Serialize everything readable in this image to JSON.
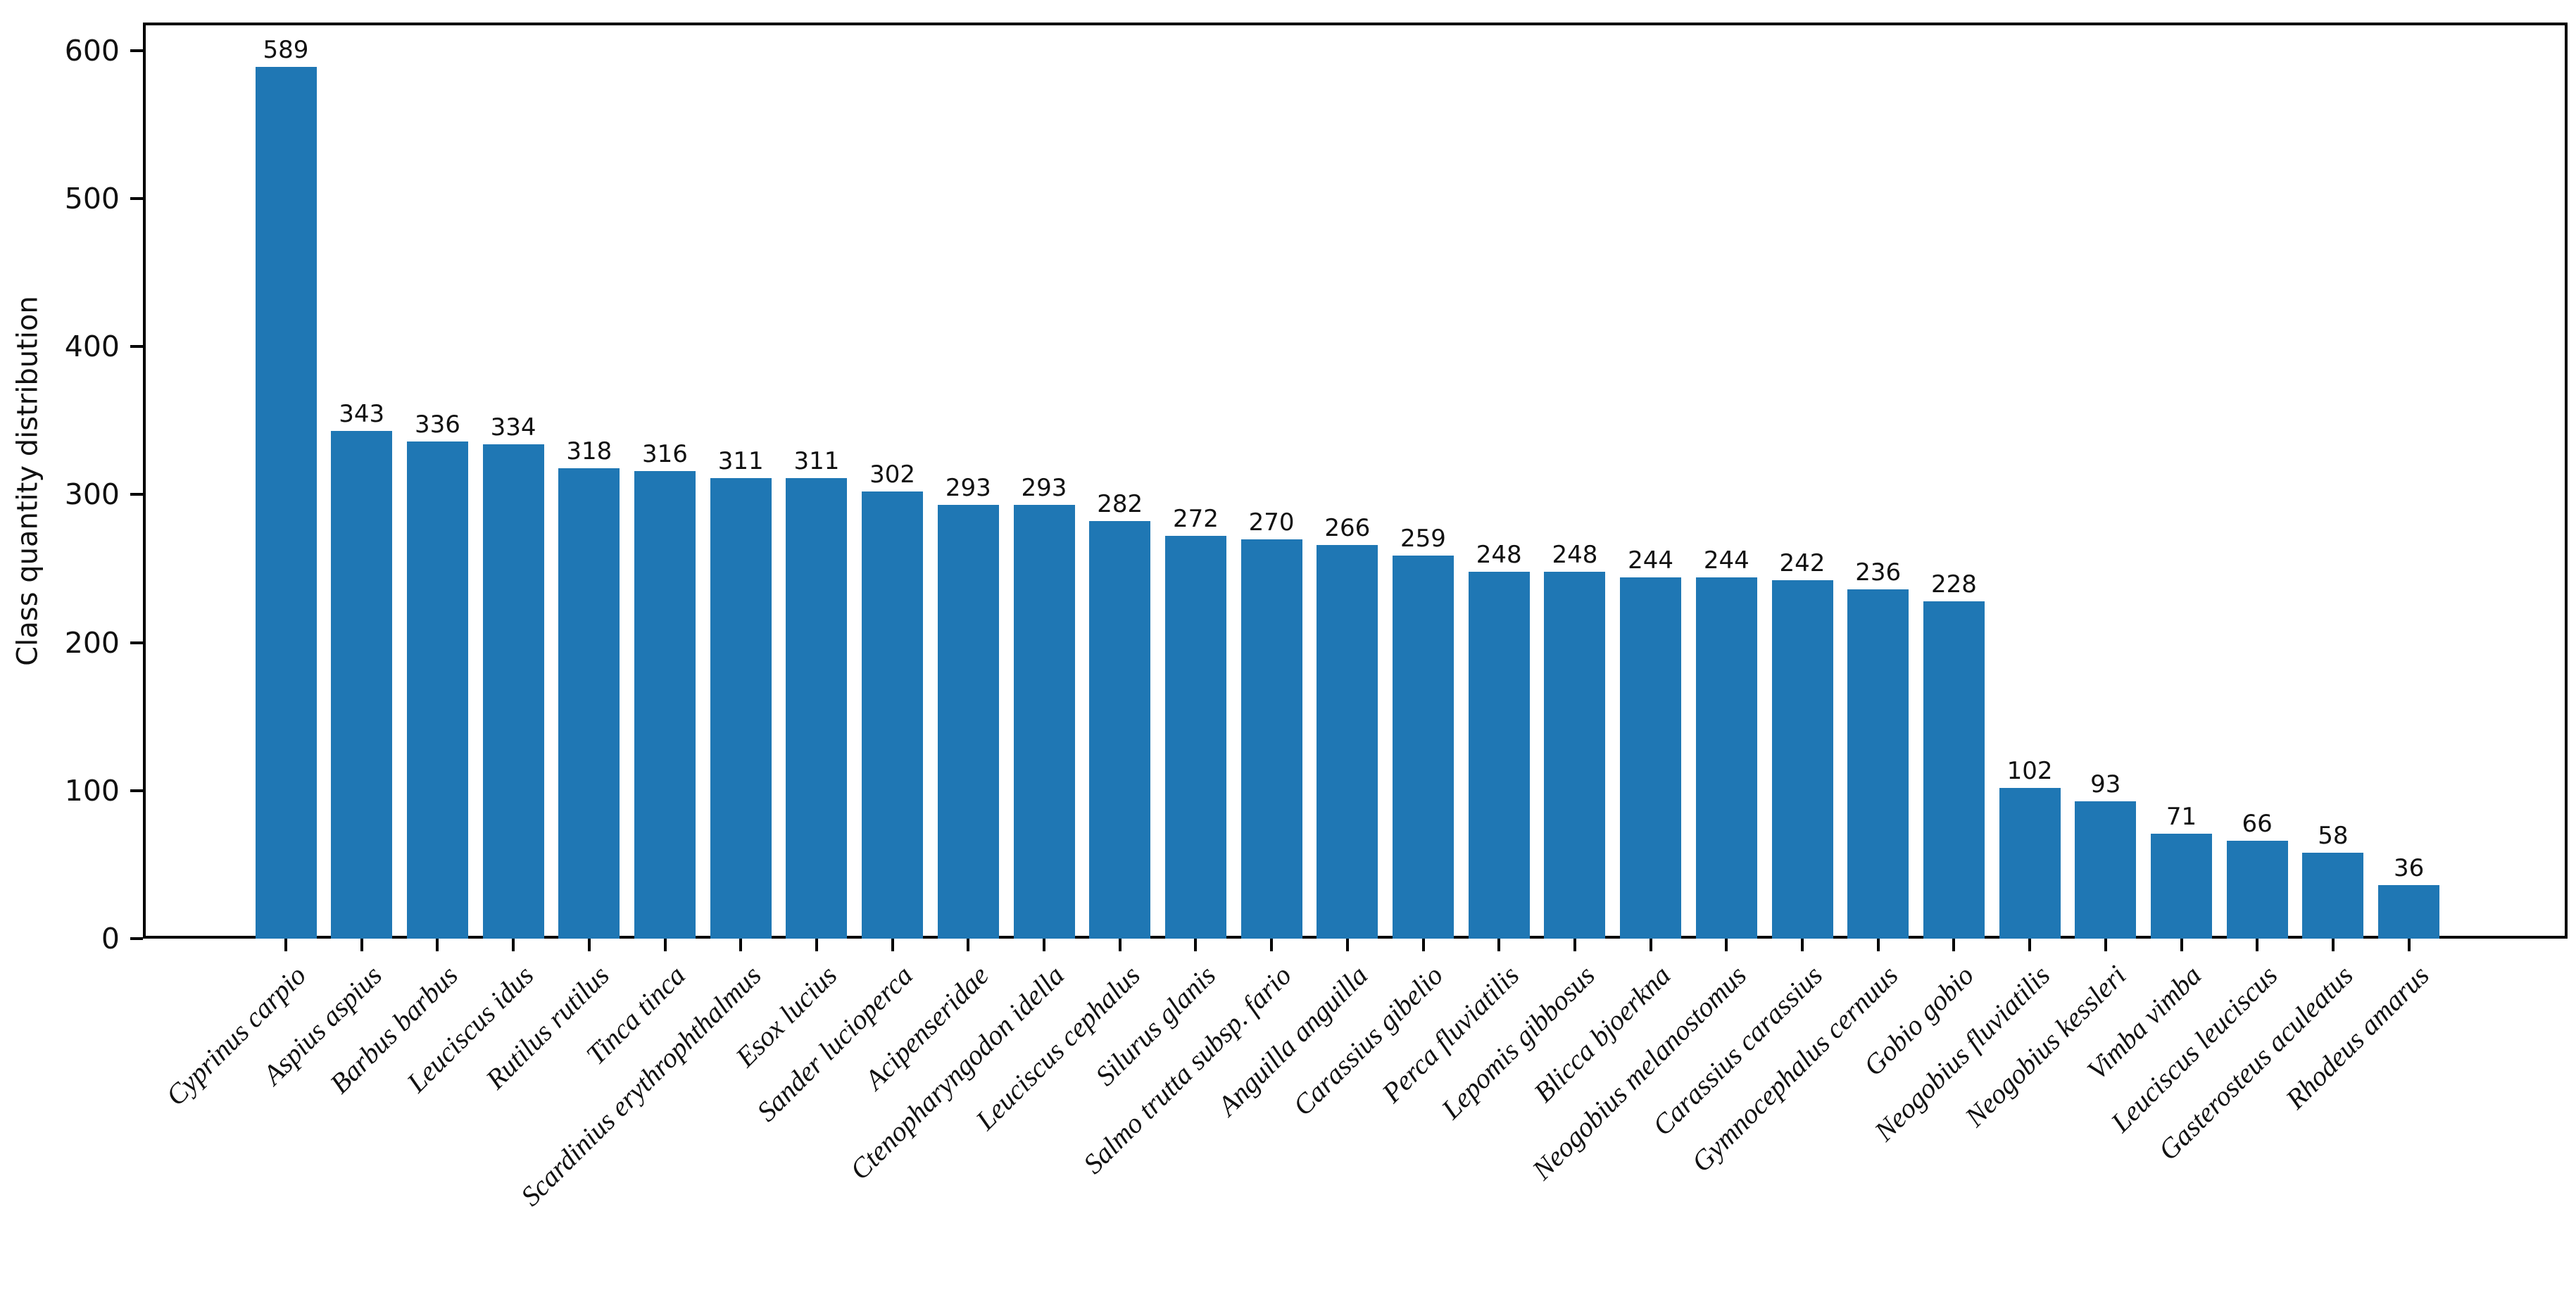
{
  "chart_data": {
    "type": "bar",
    "title": "",
    "xlabel": "",
    "ylabel": "Class quantity distribution",
    "categories": [
      "Cyprinus carpio",
      "Aspius aspius",
      "Barbus barbus",
      "Leuciscus idus",
      "Rutilus rutilus",
      "Tinca tinca",
      "Scardinius erythrophthalmus",
      "Esox lucius",
      "Sander lucioperca",
      "Acipenseridae",
      "Ctenopharyngodon idella",
      "Leuciscus cephalus",
      "Silurus glanis",
      "Salmo trutta subsp. fario",
      "Anguilla anguilla",
      "Carassius gibelio",
      "Perca fluviatilis",
      "Lepomis gibbosus",
      "Blicca bjoerkna",
      "Neogobius melanostomus",
      "Carassius carassius",
      "Gymnocephalus cernuus",
      "Gobio gobio",
      "Neogobius fluviatilis",
      "Neogobius kessleri",
      "Vimba vimba",
      "Leuciscus leuciscus",
      "Gasterosteus aculeatus",
      "Rhodeus amarus"
    ],
    "values": [
      589,
      343,
      336,
      334,
      318,
      316,
      311,
      311,
      302,
      293,
      293,
      282,
      272,
      270,
      266,
      259,
      248,
      248,
      244,
      244,
      242,
      236,
      228,
      102,
      93,
      71,
      66,
      58,
      36
    ],
    "yticks": [
      0,
      100,
      200,
      300,
      400,
      500,
      600
    ],
    "ylim": [
      0,
      619
    ],
    "xtick_rotation_deg": 45,
    "grid": false,
    "legend": "none",
    "value_labels_shown": true,
    "colors": {
      "bar": "#1f77b4",
      "axis": "#000000",
      "background": "#ffffff",
      "text": "#111111"
    }
  }
}
